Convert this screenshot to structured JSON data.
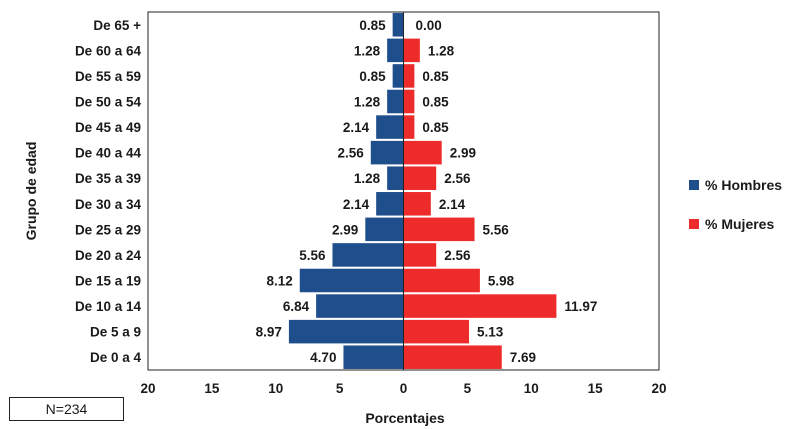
{
  "chart_data": {
    "type": "bar",
    "orientation": "horizontal",
    "layout": "population-pyramid",
    "categories": [
      "De 65 +",
      "De 60 a 64",
      "De 55 a 59",
      "De 50 a 54",
      "De 45 a 49",
      "De 40 a 44",
      "De 35 a 39",
      "De 30 a 34",
      "De 25 a 29",
      "De 20 a 24",
      "De 15 a 19",
      "De 10 a 14",
      "De 5 a 9",
      "De 0 a 4"
    ],
    "series": [
      {
        "name": "% Hombres",
        "color": "#1f4e8c",
        "side": "left",
        "values": [
          0.85,
          1.28,
          0.85,
          1.28,
          2.14,
          2.56,
          1.28,
          2.14,
          2.99,
          5.56,
          8.12,
          6.84,
          8.97,
          4.7
        ],
        "labels": [
          "0.85",
          "1.28",
          "0.85",
          "1.28",
          "2.14",
          "2.56",
          "1.28",
          "2.14",
          "2.99",
          "5.56",
          "8.12",
          "6.84",
          "8.97",
          "4.70"
        ]
      },
      {
        "name": "% Mujeres",
        "color": "#ee2b2b",
        "side": "right",
        "values": [
          0.0,
          1.28,
          0.85,
          0.85,
          0.85,
          2.99,
          2.56,
          2.14,
          5.56,
          2.56,
          5.98,
          11.97,
          5.13,
          7.69
        ],
        "labels": [
          "0.00",
          "1.28",
          "0.85",
          "0.85",
          "0.85",
          "2.99",
          "2.56",
          "2.14",
          "5.56",
          "2.56",
          "5.98",
          "11.97",
          "5.13",
          "7.69"
        ]
      }
    ],
    "xlabel": "Porcentajes",
    "ylabel": "Grupo de edad",
    "xlim": [
      -20,
      20
    ],
    "xticks": [
      -20,
      -15,
      -10,
      -5,
      0,
      5,
      10,
      15,
      20
    ],
    "xtick_labels": [
      "20",
      "15",
      "10",
      "5",
      "0",
      "5",
      "10",
      "15",
      "20"
    ],
    "legend_position": "right",
    "grid": false
  },
  "note": "N=234"
}
